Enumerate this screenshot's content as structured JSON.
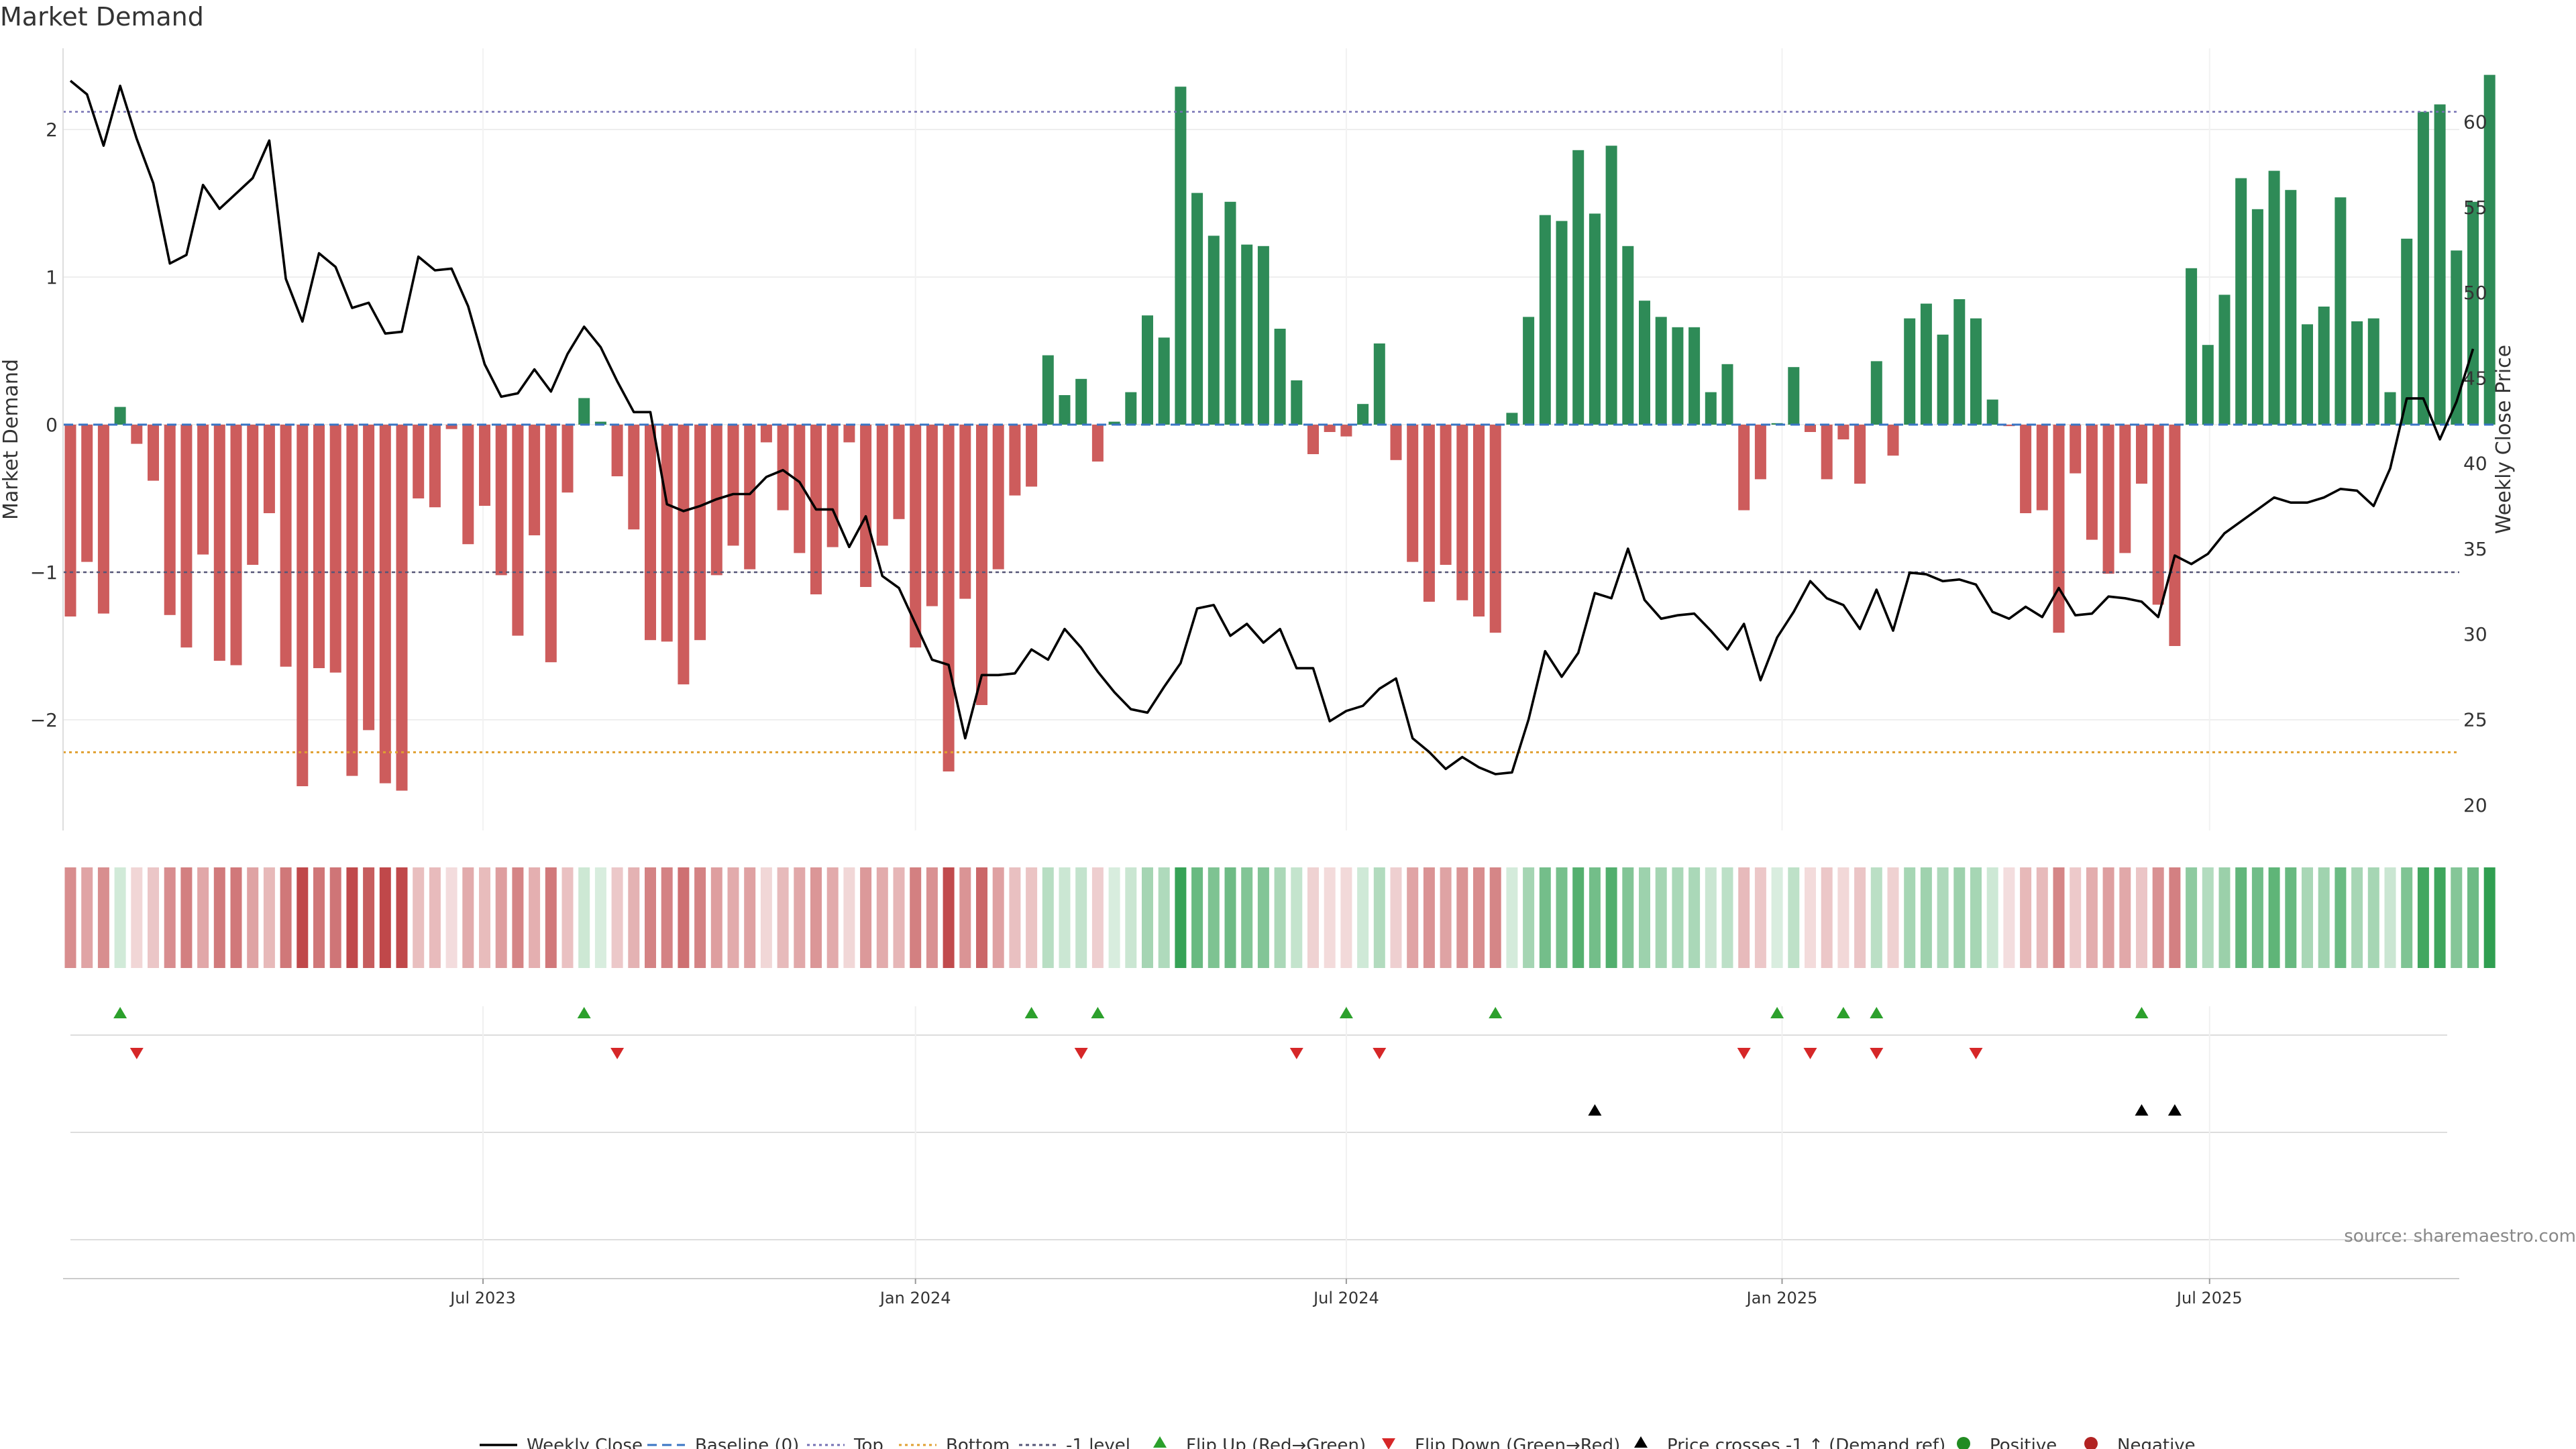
{
  "chart_data": {
    "type": "bar",
    "title": "Market Demand",
    "ylabel": "Market Demand",
    "y2label": "Weekly Close Price",
    "ylim": [
      -2.75,
      2.55
    ],
    "y2lim": [
      18.5,
      64.3
    ],
    "yticks": [
      2,
      1,
      0,
      -1,
      -2
    ],
    "ytick_labels": [
      "2",
      "1",
      "0",
      "−1",
      "−2"
    ],
    "y2ticks": [
      60,
      55,
      50,
      45,
      40,
      35,
      30,
      25,
      20
    ],
    "y2tick_labels": [
      "60",
      "55",
      "50",
      "45",
      "40",
      "35",
      "30",
      "25",
      "20"
    ],
    "x_start": "2023-01-13",
    "x_step_weeks": 1,
    "x_months": [
      {
        "label": "Jul 2023",
        "week": 24.9
      },
      {
        "label": "Jan 2024",
        "week": 51.0
      },
      {
        "label": "Jul 2024",
        "week": 77.0
      },
      {
        "label": "Jan 2025",
        "week": 103.3
      },
      {
        "label": "Jul 2025",
        "week": 129.1
      }
    ],
    "levels": {
      "top": 2.12,
      "bottom": -2.22,
      "minus_one": -1,
      "baseline": 0
    },
    "colors": {
      "positive": "#2e8b57",
      "negative": "#cd5c5c",
      "price": "#000000",
      "top": "#7570b3",
      "bottom": "#e0a030",
      "minus_one": "#555577",
      "baseline": "#3a75c4",
      "flip_up": "#2ca02c",
      "flip_down": "#d62728",
      "heat_pos_strong": "#2e9e4f",
      "heat_neg_strong": "#c0484a"
    },
    "demand": [
      -1.3,
      -0.93,
      -1.28,
      0.12,
      -0.13,
      -0.38,
      -1.29,
      -1.51,
      -0.88,
      -1.6,
      -1.63,
      -0.95,
      -0.6,
      -1.64,
      -2.45,
      -1.65,
      -1.68,
      -2.38,
      -2.07,
      -2.43,
      -2.48,
      -0.5,
      -0.56,
      -0.03,
      -0.81,
      -0.55,
      -1.02,
      -1.43,
      -0.75,
      -1.61,
      -0.46,
      0.18,
      0.02,
      -0.35,
      -0.71,
      -1.46,
      -1.47,
      -1.76,
      -1.46,
      -1.02,
      -0.82,
      -0.98,
      -0.12,
      -0.58,
      -0.87,
      -1.15,
      -0.83,
      -0.12,
      -1.1,
      -0.82,
      -0.64,
      -1.51,
      -1.23,
      -2.35,
      -1.18,
      -1.9,
      -0.98,
      -0.48,
      -0.42,
      0.47,
      0.2,
      0.31,
      -0.25,
      0.02,
      0.22,
      0.74,
      0.59,
      2.29,
      1.57,
      1.28,
      1.51,
      1.22,
      1.21,
      0.65,
      0.3,
      -0.2,
      -0.05,
      -0.08,
      0.14,
      0.55,
      -0.24,
      -0.93,
      -1.2,
      -0.95,
      -1.19,
      -1.3,
      -1.41,
      0.08,
      0.73,
      1.42,
      1.38,
      1.86,
      1.43,
      1.89,
      1.21,
      0.84,
      0.73,
      0.66,
      0.66,
      0.22,
      0.41,
      -0.58,
      -0.37,
      0.01,
      0.39,
      -0.05,
      -0.37,
      -0.1,
      -0.4,
      0.43,
      -0.21,
      0.72,
      0.82,
      0.61,
      0.85,
      0.72,
      0.17,
      -0.01,
      -0.6,
      -0.58,
      -1.41,
      -0.33,
      -0.78,
      -1.01,
      -0.87,
      -0.4,
      -1.22,
      -1.5,
      1.06,
      0.54,
      0.88,
      1.67,
      1.46,
      1.72,
      1.59,
      0.68,
      0.8,
      1.54,
      0.7,
      0.72,
      0.22,
      1.26,
      2.12,
      2.17,
      1.18,
      1.51,
      2.37
    ],
    "price": [
      62.4,
      61.6,
      58.6,
      62.1,
      59,
      56.4,
      51.7,
      52.2,
      56.3,
      54.9,
      55.8,
      56.7,
      58.9,
      50.8,
      48.3,
      52.3,
      51.5,
      49.1,
      49.4,
      47.6,
      47.7,
      52.1,
      51.3,
      51.4,
      49.2,
      45.8,
      43.9,
      44.1,
      45.5,
      44.2,
      46.4,
      48,
      46.8,
      44.8,
      43,
      43,
      37.6,
      37.2,
      37.5,
      37.9,
      38.2,
      38.2,
      39.2,
      39.6,
      38.9,
      37.3,
      37.3,
      35.1,
      36.9,
      33.4,
      32.7,
      30.6,
      28.5,
      28.2,
      23.9,
      27.6,
      27.6,
      27.7,
      29.1,
      28.5,
      30.3,
      29.2,
      27.8,
      26.6,
      25.6,
      25.4,
      26.9,
      28.3,
      31.5,
      31.7,
      29.9,
      30.6,
      29.5,
      30.3,
      28,
      28,
      24.9,
      25.5,
      25.8,
      26.8,
      27.4,
      23.9,
      23.1,
      22.1,
      22.8,
      22.2,
      21.8,
      21.9,
      25,
      29,
      27.5,
      28.9,
      32.4,
      32.1,
      35,
      32,
      30.9,
      31.1,
      31.2,
      30.2,
      29.1,
      30.6,
      27.3,
      29.8,
      31.3,
      33.1,
      32.1,
      31.7,
      30.3,
      32.6,
      30.2,
      33.6,
      33.5,
      33.1,
      33.2,
      32.9,
      31.3,
      30.9,
      31.6,
      31,
      32.7,
      31.1,
      31.2,
      32.2,
      32.1,
      31.9,
      31,
      34.6,
      34.1,
      34.7,
      35.9,
      36.6,
      37.3,
      38,
      37.7,
      37.7,
      38,
      38.5,
      38.4,
      37.5,
      39.7,
      43.8,
      43.8,
      41.4,
      43.6,
      46.7
    ],
    "flip_up_weeks": [
      3,
      31,
      58,
      62,
      77,
      86,
      103,
      107,
      109,
      125
    ],
    "flip_down_weeks": [
      4,
      33,
      61,
      74,
      79,
      101,
      105,
      109,
      115
    ],
    "price_cross_weeks": [
      92,
      125,
      127
    ],
    "legend": {
      "weekly_close": "Weekly Close",
      "baseline": "Baseline (0)",
      "top": "Top",
      "bottom": "Bottom",
      "minus_one": "-1 level",
      "flip_up": "Flip Up (Red→Green)",
      "flip_down": "Flip Down (Green→Red)",
      "price_cross": "Price crosses -1 ↑ (Demand ref)",
      "positive": "Positive",
      "negative": "Negative"
    },
    "source": "source: sharemaestro.com"
  }
}
